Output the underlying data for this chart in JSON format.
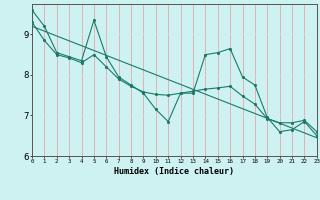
{
  "title": "",
  "xlabel": "Humidex (Indice chaleur)",
  "bg_color": "#cef2f2",
  "line_color": "#1a7a6a",
  "grid_color_v": "#e89898",
  "grid_color_h": "#d4ecec",
  "xlim": [
    0,
    23
  ],
  "ylim": [
    6.0,
    9.75
  ],
  "yticks": [
    6,
    7,
    8,
    9
  ],
  "xticks": [
    0,
    1,
    2,
    3,
    4,
    5,
    6,
    7,
    8,
    9,
    10,
    11,
    12,
    13,
    14,
    15,
    16,
    17,
    18,
    19,
    20,
    21,
    22,
    23
  ],
  "series1_y": [
    9.6,
    9.2,
    8.55,
    8.45,
    8.35,
    9.35,
    8.45,
    7.95,
    7.75,
    7.55,
    7.15,
    6.85,
    7.55,
    7.55,
    8.5,
    8.55,
    8.65,
    7.95,
    7.75,
    6.95,
    6.6,
    6.65,
    6.85,
    6.5
  ],
  "series2_y": [
    9.3,
    8.85,
    8.5,
    8.42,
    8.3,
    8.5,
    8.2,
    7.9,
    7.72,
    7.58,
    7.52,
    7.5,
    7.55,
    7.6,
    7.65,
    7.68,
    7.72,
    7.48,
    7.28,
    6.92,
    6.82,
    6.82,
    6.88,
    6.6
  ],
  "trend_x": [
    0,
    23
  ],
  "trend_y": [
    9.2,
    6.45
  ],
  "marker_size": 2.5,
  "linewidth": 0.8
}
